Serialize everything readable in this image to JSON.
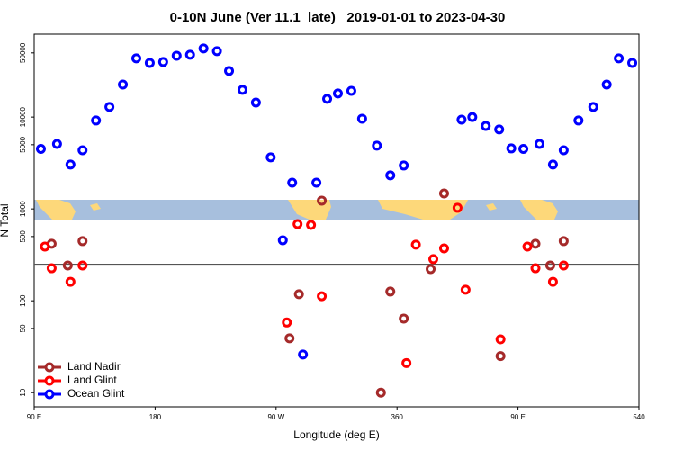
{
  "chart_data": {
    "type": "scatter",
    "title": "0-10N June (Ver 11.1_late)   2019-01-01 to 2023-04-30",
    "x_label": "Longitude (deg E)",
    "y_label": "N Total",
    "xlim": [
      90,
      540
    ],
    "ylim": [
      7,
      80000
    ],
    "log_y": true,
    "legend": "bottom-left",
    "hline": 250,
    "xticks": [
      {
        "value": 90,
        "label": "90 E"
      },
      180,
      {
        "value": 270,
        "label": "90 W"
      },
      360,
      {
        "value": 450,
        "label": "90 E"
      },
      540
    ],
    "yticks": [
      10,
      50,
      100,
      500,
      1000,
      5000,
      10000,
      50000
    ],
    "series": [
      {
        "name": "Land Nadir",
        "color": "#a52a2a",
        "x": [
          103,
          115,
          126,
          280,
          287,
          304,
          348,
          355,
          365,
          385,
          395,
          437,
          463,
          474,
          484
        ],
        "values": [
          417,
          242,
          446,
          39,
          118,
          1231,
          10,
          126,
          64,
          221,
          1474,
          25,
          417,
          242,
          446
        ]
      },
      {
        "name": "Land Glint",
        "color": "#ff0000",
        "x": [
          98,
          103,
          117,
          126,
          278,
          286,
          296,
          304,
          367,
          374,
          387,
          395,
          405,
          411,
          437,
          457,
          463,
          476,
          484
        ],
        "values": [
          389,
          226,
          161,
          242,
          58,
          684,
          669,
          112,
          21,
          408,
          284,
          372,
          1028,
          132,
          38,
          389,
          226,
          161,
          242
        ]
      },
      {
        "name": "Ocean Glint",
        "color": "#0000ff",
        "x": [
          95,
          107,
          117,
          126,
          136,
          146,
          156,
          166,
          176,
          186,
          196,
          206,
          216,
          226,
          235,
          245,
          255,
          266,
          275,
          282,
          290,
          300,
          308,
          316,
          326,
          334,
          345,
          355,
          365,
          408,
          416,
          426,
          436,
          445,
          454,
          466,
          476,
          484,
          495,
          506,
          516,
          525,
          535
        ],
        "values": [
          4500,
          5100,
          3040,
          4350,
          9180,
          12900,
          22600,
          43600,
          38900,
          39800,
          46600,
          47700,
          55900,
          52200,
          31800,
          19800,
          14400,
          3640,
          456,
          1930,
          26,
          1930,
          15800,
          18100,
          19300,
          9600,
          4880,
          2320,
          2970,
          9380,
          10000,
          8010,
          7330,
          4560,
          4500,
          5100,
          3040,
          4350,
          9180,
          12900,
          22600,
          43600,
          38900
        ]
      }
    ]
  }
}
